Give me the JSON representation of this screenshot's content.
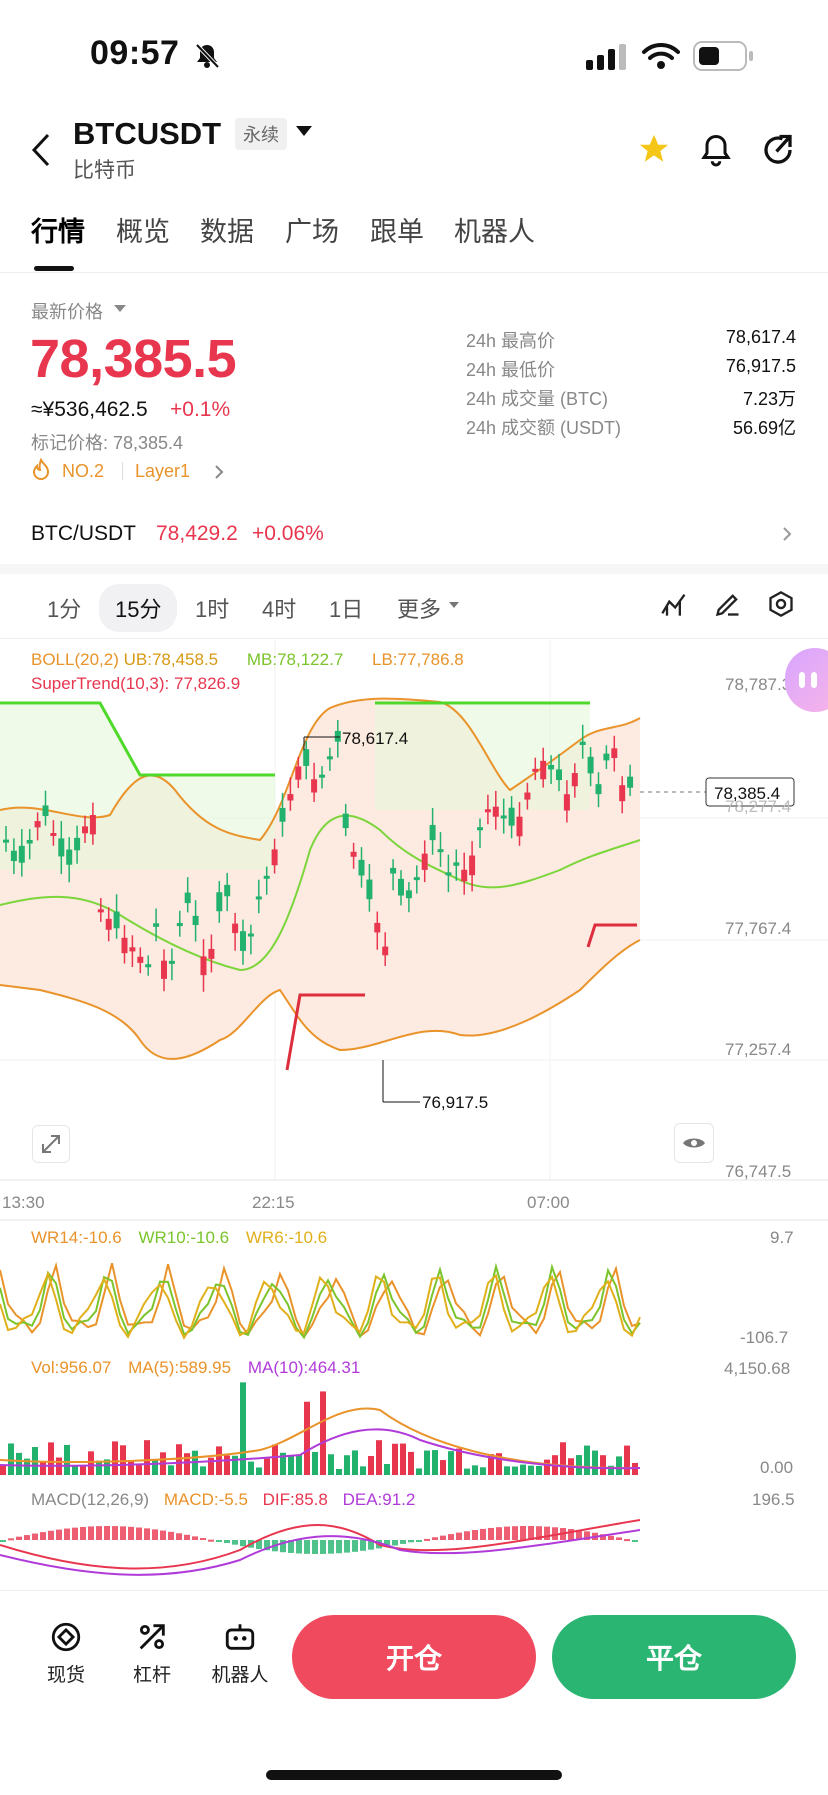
{
  "status": {
    "time": "09:57"
  },
  "header": {
    "symbol": "BTCUSDT",
    "contract_type": "永续",
    "name": "比特币"
  },
  "tabs": [
    "行情",
    "概览",
    "数据",
    "广场",
    "跟单",
    "机器人"
  ],
  "summary": {
    "latest_price_label": "最新价格",
    "price": "78,385.5",
    "cny": "≈¥536,462.5",
    "change": "+0.1%",
    "mark_price": "标记价格: 78,385.4",
    "rank": "NO.2",
    "category": "Layer1",
    "stats": [
      {
        "label": "24h 最高价",
        "value": "78,617.4"
      },
      {
        "label": "24h 最低价",
        "value": "76,917.5"
      },
      {
        "label": "24h 成交量 (BTC)",
        "value": "7.23万"
      },
      {
        "label": "24h 成交额 (USDT)",
        "value": "56.69亿"
      }
    ]
  },
  "pair": {
    "name": "BTC/USDT",
    "price": "78,429.2",
    "change": "+0.06%"
  },
  "intervals": [
    "1分",
    "15分",
    "1时",
    "4时",
    "1日",
    "更多"
  ],
  "indicators": {
    "boll": "BOLL(20,2)",
    "ub": "UB:78,458.5",
    "mb": "MB:78,122.7",
    "lb": "LB:77,786.8",
    "supertrend": "SuperTrend(10,3): 77,826.9",
    "wr14": "WR14:-10.6",
    "wr10": "WR10:-10.6",
    "wr6": "WR6:-10.6",
    "vol": "Vol:956.07",
    "ma5": "MA(5):589.95",
    "ma10": "MA(10):464.31",
    "macd": "MACD(12,26,9)",
    "macd_val": "MACD:-5.5",
    "dif": "DIF:85.8",
    "dea": "DEA:91.2"
  },
  "chart_axes": {
    "price_ticks": [
      "78,787.3",
      "78,277.4",
      "77,767.4",
      "77,257.4",
      "76,747.5"
    ],
    "current_price_tag": "78,385.4",
    "high_mark": "78,617.4",
    "low_mark": "76,917.5",
    "time_ticks": [
      "13:30",
      "22:15",
      "07:00"
    ],
    "wr_ticks": [
      "9.7",
      "-106.7"
    ],
    "vol_ticks": [
      "4,150.68",
      "0.00"
    ],
    "macd_ticks": [
      "196.5"
    ]
  },
  "bottom": {
    "tools": [
      "现货",
      "杠杆",
      "机器人"
    ],
    "open": "开仓",
    "close": "平仓"
  },
  "colors": {
    "up": "#e8364f",
    "down": "#23b26d",
    "accent_orange": "#e9932a"
  }
}
